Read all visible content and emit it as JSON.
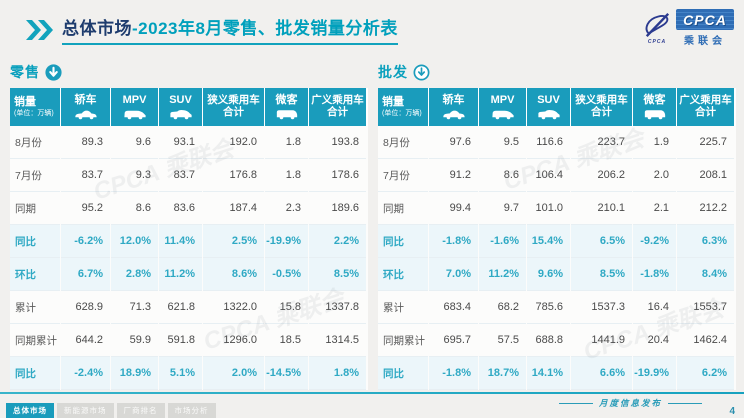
{
  "header": {
    "title_prefix": "总体市场",
    "title_rest": "-2023年8月零售、批发销量分析表",
    "logo": {
      "en": "CPCA",
      "cn": "乘联会",
      "sub": "CPCA"
    }
  },
  "columns": [
    {
      "label": "销量",
      "sub": "(单位：万辆)"
    },
    {
      "label": "轿车",
      "icon": "sedan"
    },
    {
      "label": "MPV",
      "icon": "mpv"
    },
    {
      "label": "SUV",
      "icon": "suv"
    },
    {
      "label": "狭义乘用车",
      "label2": "合计"
    },
    {
      "label": "微客",
      "icon": "microvan"
    },
    {
      "label": "广义乘用车",
      "label2": "合计"
    }
  ],
  "tables": [
    {
      "name": "零售",
      "icon_style": "solid",
      "rows": [
        {
          "label": "8月份",
          "accent": false,
          "values": [
            "89.3",
            "9.6",
            "93.1",
            "192.0",
            "1.8",
            "193.8"
          ]
        },
        {
          "label": "7月份",
          "accent": false,
          "values": [
            "83.7",
            "9.3",
            "83.7",
            "176.8",
            "1.8",
            "178.6"
          ]
        },
        {
          "label": "同期",
          "accent": false,
          "values": [
            "95.2",
            "8.6",
            "83.6",
            "187.4",
            "2.3",
            "189.6"
          ]
        },
        {
          "label": "同比",
          "accent": true,
          "values": [
            "-6.2%",
            "12.0%",
            "11.4%",
            "2.5%",
            "-19.9%",
            "2.2%"
          ]
        },
        {
          "label": "环比",
          "accent": true,
          "values": [
            "6.7%",
            "2.8%",
            "11.2%",
            "8.6%",
            "-0.5%",
            "8.5%"
          ]
        },
        {
          "label": "累计",
          "accent": false,
          "values": [
            "628.9",
            "71.3",
            "621.8",
            "1322.0",
            "15.8",
            "1337.8"
          ]
        },
        {
          "label": "同期累计",
          "accent": false,
          "values": [
            "644.2",
            "59.9",
            "591.8",
            "1296.0",
            "18.5",
            "1314.5"
          ]
        },
        {
          "label": "同比",
          "accent": true,
          "values": [
            "-2.4%",
            "18.9%",
            "5.1%",
            "2.0%",
            "-14.5%",
            "1.8%"
          ]
        }
      ]
    },
    {
      "name": "批发",
      "icon_style": "outline",
      "rows": [
        {
          "label": "8月份",
          "accent": false,
          "values": [
            "97.6",
            "9.5",
            "116.6",
            "223.7",
            "1.9",
            "225.7"
          ]
        },
        {
          "label": "7月份",
          "accent": false,
          "values": [
            "91.2",
            "8.6",
            "106.4",
            "206.2",
            "2.0",
            "208.1"
          ]
        },
        {
          "label": "同期",
          "accent": false,
          "values": [
            "99.4",
            "9.7",
            "101.0",
            "210.1",
            "2.1",
            "212.2"
          ]
        },
        {
          "label": "同比",
          "accent": true,
          "values": [
            "-1.8%",
            "-1.6%",
            "15.4%",
            "6.5%",
            "-9.2%",
            "6.3%"
          ]
        },
        {
          "label": "环比",
          "accent": true,
          "values": [
            "7.0%",
            "11.2%",
            "9.6%",
            "8.5%",
            "-1.8%",
            "8.4%"
          ]
        },
        {
          "label": "累计",
          "accent": false,
          "values": [
            "683.4",
            "68.2",
            "785.6",
            "1537.3",
            "16.4",
            "1553.7"
          ]
        },
        {
          "label": "同期累计",
          "accent": false,
          "values": [
            "695.7",
            "57.5",
            "688.8",
            "1441.9",
            "20.4",
            "1462.4"
          ]
        },
        {
          "label": "同比",
          "accent": true,
          "values": [
            "-1.8%",
            "18.7%",
            "14.1%",
            "6.6%",
            "-19.9%",
            "6.2%"
          ]
        }
      ]
    }
  ],
  "watermark": {
    "text": "CPCA 乘联会"
  },
  "footer": {
    "tabs": [
      {
        "label": "总体市场",
        "active": true
      },
      {
        "label": "新能源市场",
        "active": false
      },
      {
        "label": "厂商排名",
        "active": false
      },
      {
        "label": "市场分析",
        "active": false
      }
    ],
    "note": "月度信息发布",
    "page": "4"
  },
  "colors": {
    "teal": "#1a9cbc",
    "navy": "#1e3c6e",
    "accent_text": "#2fa9c4",
    "logo_blue": "#2f6db5"
  }
}
